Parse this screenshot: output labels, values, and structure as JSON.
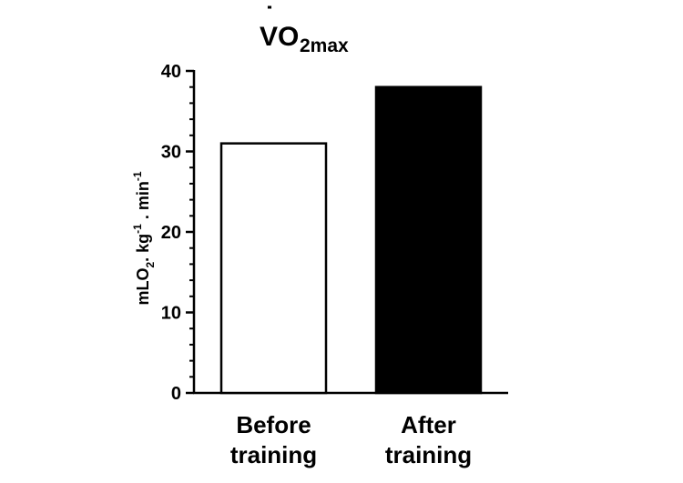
{
  "chart_data": {
    "type": "bar",
    "title": {
      "base": "V",
      "dot": "˙",
      "main": "O",
      "sub": "2max"
    },
    "ylabel": {
      "p1": "mLO",
      "p1_sub": "2",
      "p2": ". kg",
      "p2_sup": "-1",
      "p3": " . min",
      "p3_sup": "-1"
    },
    "categories": [
      [
        "Before",
        "training"
      ],
      [
        "After",
        "training"
      ]
    ],
    "values": [
      31,
      38
    ],
    "bar_fills": [
      "#ffffff",
      "#000000"
    ],
    "ylim": [
      0,
      40
    ],
    "yticks": [
      0,
      10,
      20,
      30,
      40
    ],
    "minor_ticks_per_major": 5,
    "grid": false,
    "legend": "none"
  }
}
